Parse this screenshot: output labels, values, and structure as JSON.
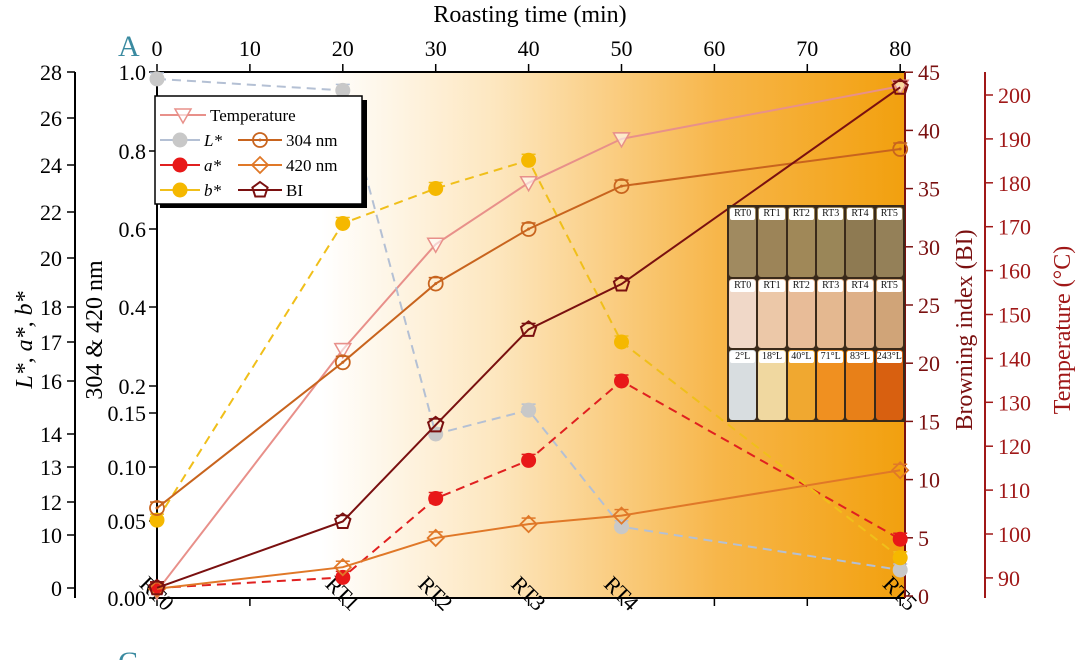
{
  "panel_labels": {
    "top": "A",
    "bottom": "C"
  },
  "chart_data": {
    "type": "line",
    "top_axis": {
      "label": "Roasting time (min)",
      "ticks": [
        0,
        10,
        20,
        30,
        40,
        50,
        60,
        70,
        80
      ],
      "range": [
        0,
        80
      ]
    },
    "categories": [
      "RT0",
      "RT1",
      "RT2",
      "RT3",
      "RT4",
      "RT5"
    ],
    "times_min": [
      0,
      20,
      30,
      40,
      50,
      80
    ],
    "left_axis": {
      "label": "L*, a*, b*",
      "ticks": [
        0,
        10,
        12,
        13,
        14,
        16,
        17,
        18,
        20,
        22,
        24,
        26,
        28
      ],
      "range": [
        0,
        28
      ],
      "broken": true
    },
    "inner_left_axis": {
      "label": "304 & 420 nm",
      "ticks": [
        "0.00",
        "0.05",
        "0.10",
        "0.15",
        "0.2",
        "0.4",
        "0.6",
        "0.8",
        "1.0"
      ],
      "range": [
        0,
        1.0
      ],
      "broken": true
    },
    "right_axis_1": {
      "label": "Browning index (BI)",
      "ticks": [
        0,
        5,
        10,
        15,
        20,
        25,
        30,
        35,
        40,
        45
      ],
      "range": [
        0,
        45
      ]
    },
    "right_axis_2": {
      "label": "Temperature (°C)",
      "ticks": [
        90,
        100,
        110,
        120,
        130,
        140,
        150,
        160,
        170,
        180,
        190,
        200
      ],
      "range": [
        85,
        205
      ]
    },
    "legend_position": "top-left",
    "grid": false,
    "series": [
      {
        "name": "Temperature",
        "axis": "temperature",
        "values": [
          87,
          142,
          166,
          180,
          190,
          202
        ],
        "color": "#e8908a",
        "dash": false,
        "marker": "triangle-down-open"
      },
      {
        "name": "L*",
        "axis": "lab",
        "values": [
          27.7,
          27.2,
          14.0,
          14.9,
          10.5,
          3.4
        ],
        "color": "#b4c0d4",
        "dash": true,
        "marker": "circle-filled-gray"
      },
      {
        "name": "a*",
        "axis": "lab",
        "values": [
          0,
          2,
          12.1,
          13.2,
          16.0,
          9.2
        ],
        "color": "#e02020",
        "dash": true,
        "marker": "circle-filled-red"
      },
      {
        "name": "b*",
        "axis": "lab",
        "values": [
          10.9,
          21.5,
          23.0,
          24.2,
          17.0,
          5.7
        ],
        "color": "#f0bf1a",
        "dash": true,
        "marker": "circle-filled-yellow"
      },
      {
        "name": "304 nm",
        "axis": "absorbance",
        "values": [
          0.062,
          0.26,
          0.46,
          0.6,
          0.71,
          0.805
        ],
        "color": "#c8641e",
        "dash": false,
        "marker": "circle-dot-open"
      },
      {
        "name": "420 nm",
        "axis": "absorbance",
        "values": [
          0.006,
          0.02,
          0.039,
          0.048,
          0.055,
          0.097
        ],
        "color": "#e07828",
        "dash": false,
        "marker": "diamond-open"
      },
      {
        "name": "BI",
        "axis": "bi",
        "values": [
          0.7,
          6.4,
          14.7,
          22.9,
          26.8,
          43.7
        ],
        "color": "#7a1010",
        "dash": false,
        "marker": "pentagon-open"
      }
    ]
  },
  "inset": {
    "row1_labels": [
      "RT0",
      "RT1",
      "RT2",
      "RT3",
      "RT4",
      "RT5"
    ],
    "row2_labels": [
      "RT0",
      "RT1",
      "RT2",
      "RT3",
      "RT4",
      "RT5"
    ],
    "row3_labels": [
      "2°L",
      "18°L",
      "40°L",
      "71°L",
      "83°L",
      "243°L"
    ],
    "row1_colors": [
      "#a08a60",
      "#9c8458",
      "#a08858",
      "#9a8658",
      "#8e7a52",
      "#948058"
    ],
    "row2_colors": [
      "#f0d8c8",
      "#ecc8a8",
      "#e8bc98",
      "#e4b890",
      "#deb088",
      "#d0a478"
    ],
    "row3_colors": [
      "#d8dde0",
      "#f0d8a0",
      "#f0a830",
      "#f09020",
      "#e88018",
      "#d86010"
    ]
  }
}
